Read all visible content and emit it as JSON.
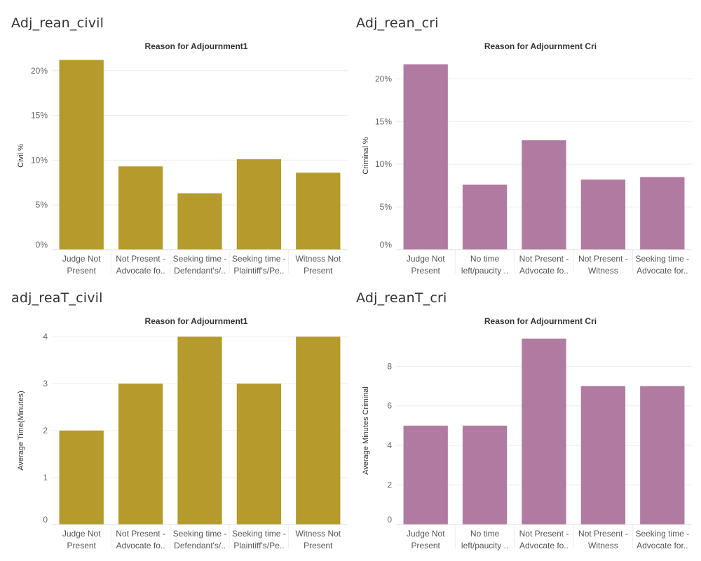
{
  "colors": {
    "civil": "#b59a2c",
    "criminal": "#b17aa0"
  },
  "chart_data": [
    {
      "id": "p1",
      "panel_title": "Adj_rean_civil",
      "type": "bar",
      "title": "Reason for Adjournment1",
      "ylabel": "Civil %",
      "ylim": [
        0,
        21
      ],
      "yticks": [
        0,
        5,
        10,
        15,
        20
      ],
      "tick_suffix": "%",
      "color_key": "civil",
      "categories": [
        [
          "Judge Not",
          "Present"
        ],
        [
          "Not Present -",
          "Advocate fo.."
        ],
        [
          "Seeking time -",
          "Defendant's/.."
        ],
        [
          "Seeking time -",
          "Plaintiff's/Pe.."
        ],
        [
          "Witness Not",
          "Present"
        ]
      ],
      "values": [
        21.2,
        9.3,
        6.3,
        10.1,
        8.6
      ]
    },
    {
      "id": "p2",
      "panel_title": "Adj_rean_cri",
      "type": "bar",
      "title": "Reason for Adjournment Cri",
      "ylabel": "Criminal %",
      "ylim": [
        0,
        22
      ],
      "yticks": [
        0,
        5,
        10,
        15,
        20
      ],
      "tick_suffix": "%",
      "color_key": "criminal",
      "categories": [
        [
          "Judge Not",
          "Present"
        ],
        [
          "No time",
          "left/paucity .."
        ],
        [
          "Not Present -",
          "Advocate fo.."
        ],
        [
          "Not Present -",
          "Witness"
        ],
        [
          "Seeking time -",
          "Advocate for.."
        ]
      ],
      "values": [
        21.7,
        7.6,
        12.8,
        8.2,
        8.5
      ]
    },
    {
      "id": "p3",
      "panel_title": "adj_reaT_civil",
      "type": "bar",
      "title": "Reason for Adjournment1",
      "ylabel": "Average Time(Minutes)",
      "ylim": [
        0,
        4
      ],
      "yticks": [
        0,
        1,
        2,
        3,
        4
      ],
      "tick_suffix": "",
      "color_key": "civil",
      "categories": [
        [
          "Judge Not",
          "Present"
        ],
        [
          "Not Present -",
          "Advocate fo.."
        ],
        [
          "Seeking time -",
          "Defendant's/.."
        ],
        [
          "Seeking time -",
          "Plaintiff's/Pe.."
        ],
        [
          "Witness Not",
          "Present"
        ]
      ],
      "values": [
        2,
        3,
        4,
        3,
        4
      ]
    },
    {
      "id": "p4",
      "panel_title": "Adj_reanT_cri",
      "type": "bar",
      "title": "Reason for Adjournment Cri",
      "ylabel": "Average Minutes Criminal",
      "ylim": [
        0,
        9.5
      ],
      "yticks": [
        0,
        2,
        4,
        6,
        8
      ],
      "tick_suffix": "",
      "color_key": "criminal",
      "categories": [
        [
          "Judge Not",
          "Present"
        ],
        [
          "No time",
          "left/paucity .."
        ],
        [
          "Not Present -",
          "Advocate fo.."
        ],
        [
          "Not Present -",
          "Witness"
        ],
        [
          "Seeking time -",
          "Advocate for.."
        ]
      ],
      "values": [
        5,
        5,
        9.4,
        7,
        7
      ]
    }
  ]
}
